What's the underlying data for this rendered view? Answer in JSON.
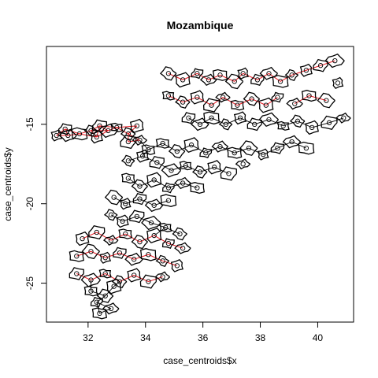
{
  "chart_data": {
    "type": "scatter",
    "title": "Mozambique",
    "xlabel": "case_centroids$x",
    "ylabel": "case_centroids$y",
    "xlim": [
      30.55,
      41.25
    ],
    "ylim": [
      -27.45,
      -10.1
    ],
    "xticks": [
      32,
      34,
      36,
      38,
      40
    ],
    "yticks": [
      -15,
      -20,
      -25
    ],
    "colors": {
      "boundary": "#000000",
      "links_red": "#e8141c",
      "points": "#000000"
    },
    "series": [
      {
        "values": [
          [
            30.9,
            -15.7
          ],
          [
            31.2,
            -15.3
          ],
          [
            31.3,
            -15.7
          ],
          [
            31.7,
            -15.6
          ],
          [
            32.1,
            -15.4
          ],
          [
            32.3,
            -15.8
          ],
          [
            32.4,
            -15.1
          ],
          [
            32.7,
            -15.4
          ],
          [
            33.0,
            -15.2
          ],
          [
            33.4,
            -15.6
          ],
          [
            33.7,
            -15.1
          ],
          [
            33.4,
            -16.1
          ],
          [
            33.8,
            -16.0
          ],
          [
            34.1,
            -16.6
          ],
          [
            34.8,
            -11.8
          ],
          [
            35.3,
            -12.2
          ],
          [
            35.8,
            -11.8
          ],
          [
            36.2,
            -12.2
          ],
          [
            36.6,
            -11.9
          ],
          [
            37.1,
            -12.3
          ],
          [
            37.4,
            -11.8
          ],
          [
            37.9,
            -12.2
          ],
          [
            38.3,
            -11.8
          ],
          [
            38.7,
            -12.3
          ],
          [
            39.1,
            -11.9
          ],
          [
            39.6,
            -11.6
          ],
          [
            40.1,
            -11.3
          ],
          [
            40.6,
            -11.0
          ],
          [
            34.8,
            -13.2
          ],
          [
            35.3,
            -13.6
          ],
          [
            35.8,
            -13.3
          ],
          [
            36.3,
            -13.8
          ],
          [
            36.7,
            -13.3
          ],
          [
            37.2,
            -13.8
          ],
          [
            37.7,
            -13.4
          ],
          [
            38.2,
            -13.8
          ],
          [
            38.6,
            -13.3
          ],
          [
            39.2,
            -13.7
          ],
          [
            39.7,
            -13.2
          ],
          [
            40.3,
            -13.5
          ],
          [
            40.7,
            -12.4
          ],
          [
            35.5,
            -14.6
          ],
          [
            35.9,
            -15.0
          ],
          [
            36.3,
            -14.6
          ],
          [
            36.8,
            -15.0
          ],
          [
            37.3,
            -14.6
          ],
          [
            37.8,
            -15.0
          ],
          [
            38.3,
            -14.7
          ],
          [
            38.8,
            -15.1
          ],
          [
            39.3,
            -14.8
          ],
          [
            39.8,
            -15.2
          ],
          [
            40.4,
            -14.9
          ],
          [
            40.9,
            -14.6
          ],
          [
            34.6,
            -16.2
          ],
          [
            35.1,
            -16.7
          ],
          [
            35.6,
            -16.3
          ],
          [
            36.1,
            -16.8
          ],
          [
            36.6,
            -16.4
          ],
          [
            37.1,
            -16.8
          ],
          [
            37.6,
            -16.5
          ],
          [
            38.1,
            -16.9
          ],
          [
            38.6,
            -16.5
          ],
          [
            39.1,
            -16.1
          ],
          [
            39.6,
            -16.5
          ],
          [
            33.4,
            -17.3
          ],
          [
            33.9,
            -17.0
          ],
          [
            34.4,
            -17.4
          ],
          [
            34.9,
            -17.9
          ],
          [
            35.4,
            -17.6
          ],
          [
            35.9,
            -18.0
          ],
          [
            36.4,
            -17.7
          ],
          [
            36.9,
            -18.1
          ],
          [
            37.4,
            -17.5
          ],
          [
            33.4,
            -18.4
          ],
          [
            33.8,
            -18.9
          ],
          [
            34.3,
            -18.5
          ],
          [
            34.8,
            -19.0
          ],
          [
            35.3,
            -18.7
          ],
          [
            35.8,
            -19.0
          ],
          [
            32.9,
            -19.6
          ],
          [
            33.3,
            -20.0
          ],
          [
            33.8,
            -19.7
          ],
          [
            34.3,
            -20.1
          ],
          [
            34.8,
            -19.8
          ],
          [
            32.8,
            -20.7
          ],
          [
            33.2,
            -21.1
          ],
          [
            33.7,
            -20.8
          ],
          [
            34.2,
            -21.2
          ],
          [
            34.7,
            -21.5
          ],
          [
            35.2,
            -21.9
          ],
          [
            31.8,
            -22.2
          ],
          [
            32.3,
            -21.8
          ],
          [
            32.8,
            -22.3
          ],
          [
            33.3,
            -21.9
          ],
          [
            33.8,
            -22.4
          ],
          [
            34.3,
            -22.0
          ],
          [
            34.8,
            -22.5
          ],
          [
            35.3,
            -22.8
          ],
          [
            31.6,
            -23.3
          ],
          [
            32.1,
            -23.0
          ],
          [
            32.6,
            -23.4
          ],
          [
            33.1,
            -23.1
          ],
          [
            33.6,
            -23.5
          ],
          [
            34.1,
            -23.2
          ],
          [
            34.6,
            -23.6
          ],
          [
            35.1,
            -23.9
          ],
          [
            31.6,
            -24.4
          ],
          [
            32.1,
            -24.8
          ],
          [
            32.6,
            -24.4
          ],
          [
            33.1,
            -24.9
          ],
          [
            33.6,
            -24.5
          ],
          [
            34.1,
            -24.9
          ],
          [
            34.6,
            -24.6
          ],
          [
            32.1,
            -25.5
          ],
          [
            32.6,
            -25.8
          ],
          [
            32.9,
            -25.2
          ],
          [
            32.3,
            -26.2
          ],
          [
            32.8,
            -26.6
          ],
          [
            32.4,
            -26.9
          ]
        ]
      }
    ]
  }
}
